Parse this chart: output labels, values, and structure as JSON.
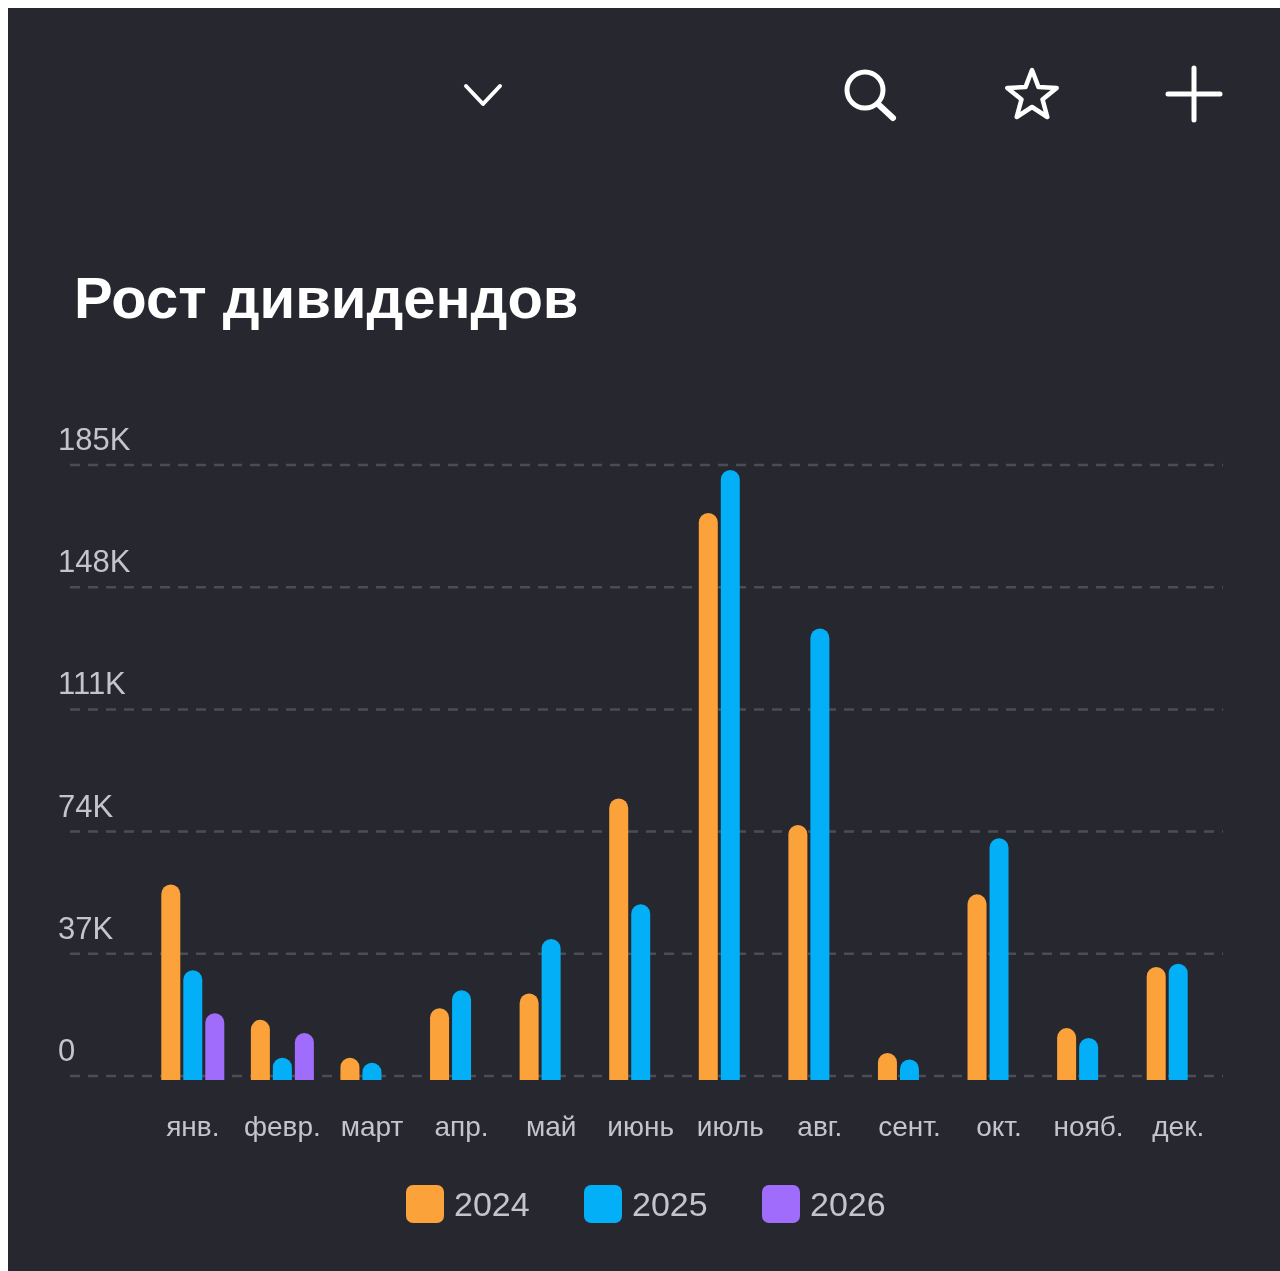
{
  "chart_data": {
    "type": "bar",
    "title": "Рост дивидендов",
    "categories": [
      "янв.",
      "февр.",
      "март",
      "апр.",
      "май",
      "июнь",
      "июль",
      "авг.",
      "сент.",
      "окт.",
      "нояб.",
      "дек."
    ],
    "series": [
      {
        "name": "2024",
        "color": "#fba23a",
        "values": [
          58000,
          17000,
          5500,
          20500,
          25000,
          84000,
          170500,
          76000,
          7000,
          55000,
          14500,
          33000
        ]
      },
      {
        "name": "2025",
        "color": "#03aff6",
        "values": [
          32000,
          5500,
          4000,
          26000,
          41500,
          52000,
          183500,
          135500,
          5000,
          72000,
          11500,
          34000
        ]
      },
      {
        "name": "2026",
        "color": "#9f6cfb",
        "values": [
          19000,
          13000,
          null,
          null,
          null,
          null,
          null,
          null,
          null,
          null,
          null,
          null
        ]
      }
    ],
    "ylim": [
      0,
      185000
    ],
    "yticks": [
      {
        "value": 0,
        "label": "0"
      },
      {
        "value": 37000,
        "label": "37K"
      },
      {
        "value": 74000,
        "label": "74K"
      },
      {
        "value": 111000,
        "label": "111K"
      },
      {
        "value": 148000,
        "label": "148K"
      },
      {
        "value": 185000,
        "label": "185K"
      }
    ],
    "grid": "y",
    "legend": "bottom"
  }
}
